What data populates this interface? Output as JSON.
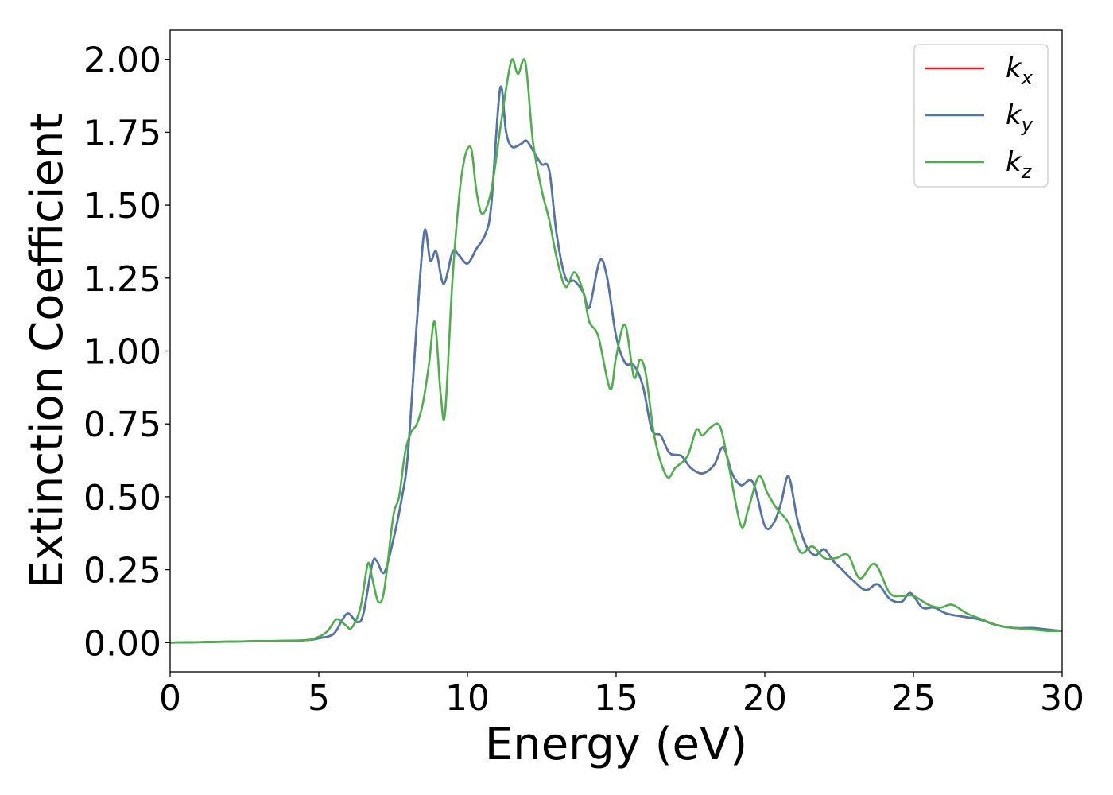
{
  "chart_data": {
    "type": "line",
    "xlabel": "Energy (eV)",
    "ylabel": "Extinction Coefficient",
    "xlim": [
      0,
      30
    ],
    "ylim": [
      -0.1,
      2.1
    ],
    "xticks": [
      0,
      5,
      10,
      15,
      20,
      25,
      30
    ],
    "xtick_labels": [
      "0",
      "5",
      "10",
      "15",
      "20",
      "25",
      "30"
    ],
    "yticks": [
      0,
      0.25,
      0.5,
      0.75,
      1.0,
      1.25,
      1.5,
      1.75,
      2.0
    ],
    "ytick_labels": [
      "0.00",
      "0.25",
      "0.50",
      "0.75",
      "1.00",
      "1.25",
      "1.50",
      "1.75",
      "2.00"
    ],
    "grid": false,
    "legend_position": "top-right",
    "series": [
      {
        "name": "k",
        "subscript": "x",
        "color": "#e41a1c",
        "x": [
          0,
          3,
          4.5,
          5.0,
          5.5,
          5.8,
          6.0,
          6.3,
          6.5,
          6.8,
          6.95,
          7.2,
          7.5,
          7.8,
          8.0,
          8.3,
          8.55,
          8.75,
          8.95,
          9.2,
          9.5,
          9.7,
          10.0,
          10.3,
          10.6,
          10.8,
          11.1,
          11.3,
          11.5,
          11.8,
          12.0,
          12.3,
          12.5,
          12.75,
          13.0,
          13.3,
          13.6,
          13.9,
          14.1,
          14.45,
          14.7,
          15.0,
          15.3,
          15.6,
          15.9,
          16.2,
          16.5,
          16.8,
          17.2,
          17.5,
          17.9,
          18.3,
          18.6,
          18.9,
          19.2,
          19.6,
          20.0,
          20.3,
          20.55,
          20.8,
          21.1,
          21.4,
          21.7,
          22.0,
          22.3,
          22.6,
          23.0,
          23.4,
          23.8,
          24.2,
          24.6,
          24.9,
          25.3,
          25.7,
          26.1,
          26.6,
          27.2,
          27.8,
          28.4,
          29.0,
          29.5,
          30.0
        ],
        "y": [
          0.0,
          0.005,
          0.008,
          0.015,
          0.03,
          0.08,
          0.1,
          0.07,
          0.1,
          0.27,
          0.28,
          0.24,
          0.35,
          0.5,
          0.65,
          1.1,
          1.41,
          1.31,
          1.34,
          1.23,
          1.34,
          1.33,
          1.3,
          1.35,
          1.4,
          1.5,
          1.9,
          1.75,
          1.7,
          1.71,
          1.72,
          1.67,
          1.64,
          1.62,
          1.4,
          1.25,
          1.24,
          1.2,
          1.15,
          1.31,
          1.25,
          1.05,
          0.96,
          0.95,
          0.88,
          0.73,
          0.71,
          0.65,
          0.64,
          0.6,
          0.58,
          0.61,
          0.67,
          0.58,
          0.54,
          0.55,
          0.4,
          0.41,
          0.48,
          0.57,
          0.42,
          0.33,
          0.3,
          0.32,
          0.28,
          0.25,
          0.21,
          0.18,
          0.2,
          0.15,
          0.14,
          0.17,
          0.12,
          0.12,
          0.1,
          0.09,
          0.08,
          0.06,
          0.05,
          0.05,
          0.045,
          0.04
        ]
      },
      {
        "name": "k",
        "subscript": "y",
        "color": "#4a77b0",
        "x": [
          0,
          3,
          4.5,
          5.0,
          5.5,
          5.8,
          6.0,
          6.3,
          6.5,
          6.8,
          6.95,
          7.2,
          7.5,
          7.8,
          8.0,
          8.3,
          8.55,
          8.75,
          8.95,
          9.2,
          9.5,
          9.7,
          10.0,
          10.3,
          10.6,
          10.8,
          11.1,
          11.3,
          11.5,
          11.8,
          12.0,
          12.3,
          12.5,
          12.75,
          13.0,
          13.3,
          13.6,
          13.9,
          14.1,
          14.45,
          14.7,
          15.0,
          15.3,
          15.6,
          15.9,
          16.2,
          16.5,
          16.8,
          17.2,
          17.5,
          17.9,
          18.3,
          18.6,
          18.9,
          19.2,
          19.6,
          20.0,
          20.3,
          20.55,
          20.8,
          21.1,
          21.4,
          21.7,
          22.0,
          22.3,
          22.6,
          23.0,
          23.4,
          23.8,
          24.2,
          24.6,
          24.9,
          25.3,
          25.7,
          26.1,
          26.6,
          27.2,
          27.8,
          28.4,
          29.0,
          29.5,
          30.0
        ],
        "y": [
          0.0,
          0.005,
          0.008,
          0.015,
          0.03,
          0.08,
          0.1,
          0.07,
          0.1,
          0.27,
          0.28,
          0.24,
          0.35,
          0.5,
          0.65,
          1.1,
          1.41,
          1.31,
          1.34,
          1.23,
          1.34,
          1.33,
          1.3,
          1.35,
          1.4,
          1.5,
          1.9,
          1.75,
          1.7,
          1.71,
          1.72,
          1.67,
          1.64,
          1.62,
          1.4,
          1.25,
          1.24,
          1.2,
          1.15,
          1.31,
          1.25,
          1.05,
          0.96,
          0.95,
          0.88,
          0.73,
          0.71,
          0.65,
          0.64,
          0.6,
          0.58,
          0.61,
          0.67,
          0.58,
          0.54,
          0.55,
          0.4,
          0.41,
          0.48,
          0.57,
          0.42,
          0.33,
          0.3,
          0.32,
          0.28,
          0.25,
          0.21,
          0.18,
          0.2,
          0.15,
          0.14,
          0.17,
          0.12,
          0.12,
          0.1,
          0.09,
          0.08,
          0.06,
          0.05,
          0.05,
          0.045,
          0.04
        ]
      },
      {
        "name": "k",
        "subscript": "z",
        "color": "#4daf4a",
        "x": [
          0,
          3,
          4.5,
          5.0,
          5.3,
          5.6,
          5.9,
          6.1,
          6.4,
          6.65,
          6.8,
          7.0,
          7.2,
          7.5,
          7.7,
          7.9,
          8.1,
          8.3,
          8.5,
          8.7,
          8.9,
          9.1,
          9.25,
          9.5,
          9.8,
          10.1,
          10.3,
          10.5,
          10.8,
          11.1,
          11.3,
          11.5,
          11.7,
          11.95,
          12.2,
          12.5,
          12.75,
          13.0,
          13.3,
          13.6,
          13.9,
          14.1,
          14.4,
          14.8,
          15.0,
          15.3,
          15.6,
          15.8,
          16.0,
          16.3,
          16.7,
          17.0,
          17.4,
          17.7,
          17.9,
          18.2,
          18.5,
          18.8,
          19.2,
          19.45,
          19.8,
          20.1,
          20.4,
          20.8,
          21.2,
          21.6,
          22.0,
          22.4,
          22.8,
          23.2,
          23.7,
          24.2,
          24.6,
          25.0,
          25.5,
          25.9,
          26.3,
          26.8,
          27.3,
          27.8,
          28.4,
          29.0,
          29.5,
          30.0
        ],
        "y": [
          0.0,
          0.005,
          0.008,
          0.02,
          0.04,
          0.08,
          0.06,
          0.05,
          0.12,
          0.27,
          0.22,
          0.14,
          0.18,
          0.43,
          0.5,
          0.65,
          0.72,
          0.75,
          0.82,
          0.95,
          1.1,
          0.85,
          0.79,
          1.25,
          1.6,
          1.7,
          1.55,
          1.47,
          1.55,
          1.76,
          1.9,
          2.0,
          1.95,
          1.99,
          1.72,
          1.55,
          1.45,
          1.32,
          1.22,
          1.27,
          1.2,
          1.1,
          1.05,
          0.87,
          0.98,
          1.09,
          0.91,
          0.97,
          0.92,
          0.7,
          0.57,
          0.6,
          0.64,
          0.73,
          0.71,
          0.74,
          0.74,
          0.6,
          0.4,
          0.46,
          0.57,
          0.51,
          0.46,
          0.41,
          0.31,
          0.33,
          0.29,
          0.29,
          0.3,
          0.22,
          0.27,
          0.17,
          0.16,
          0.16,
          0.13,
          0.12,
          0.13,
          0.1,
          0.08,
          0.06,
          0.05,
          0.045,
          0.04,
          0.04
        ]
      }
    ]
  }
}
